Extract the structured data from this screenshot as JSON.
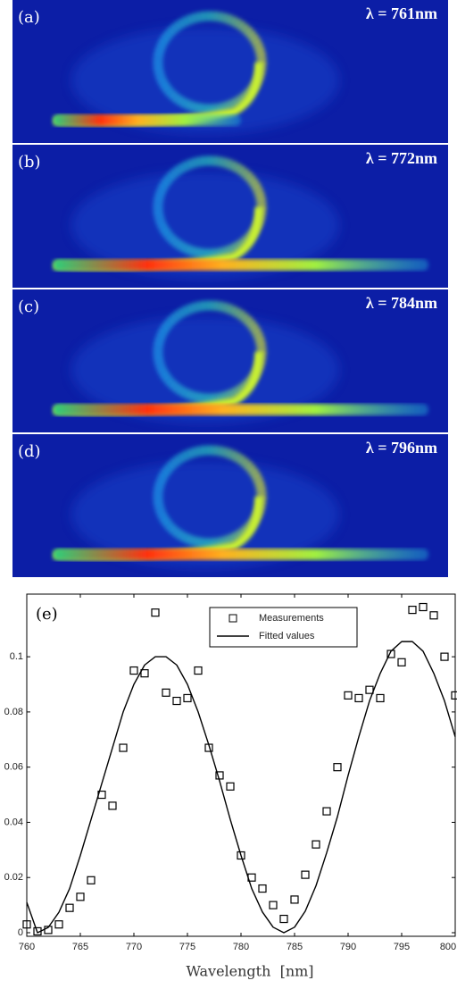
{
  "panels": [
    {
      "label": "(a)",
      "wavelength": "λ = 761nm"
    },
    {
      "label": "(b)",
      "wavelength": "λ = 772nm"
    },
    {
      "label": "(c)",
      "wavelength": "λ = 784nm"
    },
    {
      "label": "(d)",
      "wavelength": "λ = 796nm"
    }
  ],
  "chart_data": {
    "type": "scatter-line",
    "panel_label": "(e)",
    "x_label": "Wavelength  [nm]",
    "xlim": [
      760,
      800
    ],
    "xticks": [
      760,
      765,
      770,
      775,
      780,
      785,
      790,
      795,
      800
    ],
    "ylim": [
      -0.0013,
      0.1227
    ],
    "yticks": [
      0,
      0.02,
      0.04,
      0.06,
      0.08,
      0.1
    ],
    "series": [
      {
        "name": "Measurements",
        "color": "#000000",
        "marker": "square",
        "x": [
          760,
          761,
          762,
          763,
          764,
          765,
          766,
          767,
          768,
          769,
          770,
          771,
          772,
          773,
          774,
          775,
          776,
          777,
          778,
          779,
          780,
          781,
          782,
          783,
          784,
          785,
          786,
          787,
          788,
          789,
          790,
          791,
          792,
          793,
          794,
          795,
          796,
          797,
          798,
          799,
          800
        ],
        "values": [
          0.003,
          0.0005,
          0.001,
          0.003,
          0.009,
          0.013,
          0.019,
          0.05,
          0.046,
          0.067,
          0.095,
          0.094,
          0.116,
          0.087,
          0.084,
          0.085,
          0.095,
          0.067,
          0.057,
          0.053,
          0.028,
          0.02,
          0.016,
          0.01,
          0.005,
          0.012,
          0.021,
          0.032,
          0.044,
          0.06,
          0.086,
          0.085,
          0.088,
          0.085,
          0.101,
          0.098,
          0.117,
          0.118,
          0.115,
          0.1,
          0.086
        ]
      },
      {
        "name": "Fitted values",
        "color": "#000000",
        "marker": "line",
        "x": [
          760,
          761,
          762,
          763,
          764,
          765,
          766,
          767,
          768,
          769,
          770,
          771,
          772,
          773,
          774,
          775,
          776,
          777,
          778,
          779,
          780,
          781,
          782,
          783,
          784,
          785,
          786,
          787,
          788,
          789,
          790,
          791,
          792,
          793,
          794,
          795,
          796,
          797,
          798,
          799,
          800
        ],
        "values": [
          0.011,
          0,
          0.0019,
          0.0074,
          0.016,
          0.028,
          0.041,
          0.054,
          0.067,
          0.08,
          0.09,
          0.097,
          0.1,
          0.1,
          0.097,
          0.09,
          0.08,
          0.068,
          0.055,
          0.041,
          0.028,
          0.016,
          0.0075,
          0.002,
          0,
          0.002,
          0.0078,
          0.017,
          0.029,
          0.042,
          0.057,
          0.071,
          0.084,
          0.094,
          0.102,
          0.1055,
          0.1055,
          0.102,
          0.094,
          0.084,
          0.071
        ]
      }
    ]
  }
}
